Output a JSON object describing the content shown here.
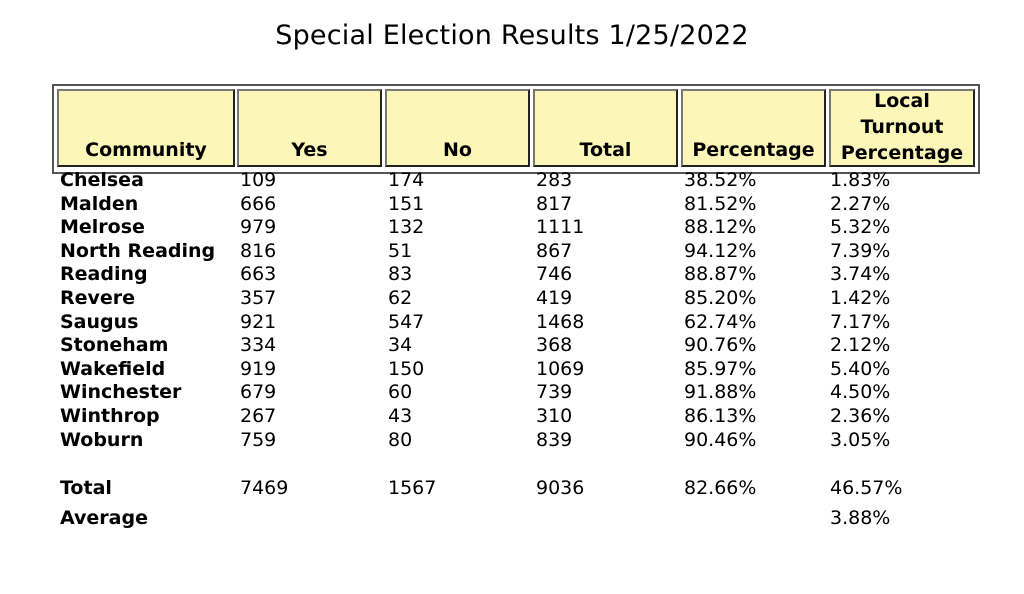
{
  "title": "Special Election Results 1/25/2022",
  "headers": {
    "community": "Community",
    "yes": "Yes",
    "no": "No",
    "total": "Total",
    "percentage": "Percentage",
    "turnout_line1": "Local",
    "turnout_line2": "Turnout",
    "turnout_line3": "Percentage"
  },
  "rows": [
    {
      "community": "Chelsea",
      "yes": "109",
      "no": "174",
      "total": "283",
      "percentage": "38.52%",
      "turnout": "1.83%"
    },
    {
      "community": "Malden",
      "yes": "666",
      "no": "151",
      "total": "817",
      "percentage": "81.52%",
      "turnout": "2.27%"
    },
    {
      "community": "Melrose",
      "yes": "979",
      "no": "132",
      "total": "1111",
      "percentage": "88.12%",
      "turnout": "5.32%"
    },
    {
      "community": "North Reading",
      "yes": "816",
      "no": "51",
      "total": "867",
      "percentage": "94.12%",
      "turnout": "7.39%"
    },
    {
      "community": "Reading",
      "yes": "663",
      "no": "83",
      "total": "746",
      "percentage": "88.87%",
      "turnout": "3.74%"
    },
    {
      "community": "Revere",
      "yes": "357",
      "no": "62",
      "total": "419",
      "percentage": "85.20%",
      "turnout": "1.42%"
    },
    {
      "community": "Saugus",
      "yes": "921",
      "no": "547",
      "total": "1468",
      "percentage": "62.74%",
      "turnout": "7.17%"
    },
    {
      "community": "Stoneham",
      "yes": "334",
      "no": "34",
      "total": "368",
      "percentage": "90.76%",
      "turnout": "2.12%"
    },
    {
      "community": "Wakefield",
      "yes": "919",
      "no": "150",
      "total": "1069",
      "percentage": "85.97%",
      "turnout": "5.40%"
    },
    {
      "community": "Winchester",
      "yes": "679",
      "no": "60",
      "total": "739",
      "percentage": "91.88%",
      "turnout": "4.50%"
    },
    {
      "community": "Winthrop",
      "yes": "267",
      "no": "43",
      "total": "310",
      "percentage": "86.13%",
      "turnout": "2.36%"
    },
    {
      "community": "Woburn",
      "yes": "759",
      "no": "80",
      "total": "839",
      "percentage": "90.46%",
      "turnout": "3.05%"
    }
  ],
  "totals": {
    "label": "Total",
    "yes": "7469",
    "no": "1567",
    "total": "9036",
    "percentage": "82.66%",
    "turnout": "46.57%"
  },
  "average": {
    "label": "Average",
    "turnout": "3.88%"
  }
}
